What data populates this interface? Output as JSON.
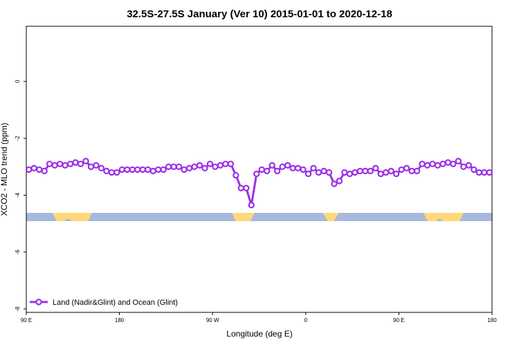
{
  "chart_data": {
    "type": "line",
    "title": "32.5S-27.5S January (Ver 10)   2015-01-01 to 2020-12-18",
    "x_label": "Longitude (deg E)",
    "y_label": "XCO2 - MLO trend (ppm)",
    "xlim": [
      90,
      540
    ],
    "ylim": [
      -8.12,
      1.94
    ],
    "xticks": [
      {
        "value": 90,
        "label": "90 E"
      },
      180,
      {
        "value": 270,
        "label": "90 W"
      },
      {
        "value": 360,
        "label": "0"
      },
      {
        "value": 450,
        "label": "90 E"
      },
      {
        "value": 540,
        "label": "180"
      }
    ],
    "yticks": [
      -8,
      -6,
      -4,
      -2,
      0
    ],
    "legend": "bottom-left",
    "x": [
      92.5,
      97.5,
      102.5,
      107.5,
      112.5,
      117.5,
      122.5,
      127.5,
      132.5,
      137.5,
      142.5,
      147.5,
      152.5,
      157.5,
      162.5,
      167.5,
      172.5,
      177.5,
      182.5,
      187.5,
      192.5,
      197.5,
      202.5,
      207.5,
      212.5,
      217.5,
      222.5,
      227.5,
      232.5,
      237.5,
      242.5,
      247.5,
      252.5,
      257.5,
      262.5,
      267.5,
      272.5,
      277.5,
      282.5,
      287.5,
      292.5,
      297.5,
      302.5,
      307.5,
      312.5,
      317.5,
      322.5,
      327.5,
      332.5,
      337.5,
      342.5,
      347.5,
      352.5,
      357.5,
      362.5,
      367.5,
      372.5,
      377.5,
      382.5,
      387.5,
      392.5,
      397.5,
      402.5,
      407.5,
      412.5,
      417.5,
      422.5,
      427.5,
      432.5,
      437.5,
      442.5,
      447.5,
      452.5,
      457.5,
      462.5,
      467.5,
      472.5,
      477.5,
      482.5,
      487.5,
      492.5,
      497.5,
      502.5,
      507.5,
      512.5,
      517.5,
      522.5,
      527.5,
      532.5,
      537.5
    ],
    "series": [
      {
        "name": "Land (Nadir&Glint) and Ocean (Glint)",
        "color": "#9b30e8",
        "values": [
          -3.1,
          -3.05,
          -3.1,
          -3.15,
          -2.9,
          -2.95,
          -2.9,
          -2.95,
          -2.9,
          -2.85,
          -2.9,
          -2.8,
          -3.0,
          -2.95,
          -3.05,
          -3.15,
          -3.2,
          -3.2,
          -3.1,
          -3.1,
          -3.1,
          -3.1,
          -3.1,
          -3.1,
          -3.15,
          -3.1,
          -3.1,
          -3.0,
          -3.0,
          -3.0,
          -3.1,
          -3.05,
          -3.0,
          -2.95,
          -3.05,
          -2.9,
          -3.0,
          -2.95,
          -2.9,
          -2.9,
          -3.3,
          -3.75,
          -3.75,
          -4.35,
          -3.25,
          -3.1,
          -3.15,
          -2.95,
          -3.15,
          -3.0,
          -2.95,
          -3.05,
          -3.05,
          -3.1,
          -3.25,
          -3.05,
          -3.2,
          -3.15,
          -3.2,
          -3.6,
          -3.5,
          -3.2,
          -3.25,
          -3.2,
          -3.15,
          -3.15,
          -3.15,
          -3.05,
          -3.25,
          -3.2,
          -3.15,
          -3.25,
          -3.1,
          -3.05,
          -3.15,
          -3.15,
          -2.9,
          -2.95,
          -2.9,
          -2.95,
          -2.9,
          -2.85,
          -2.9,
          -2.8,
          -3.0,
          -2.95,
          -3.1,
          -3.2,
          -3.2,
          -3.2
        ]
      }
    ]
  }
}
